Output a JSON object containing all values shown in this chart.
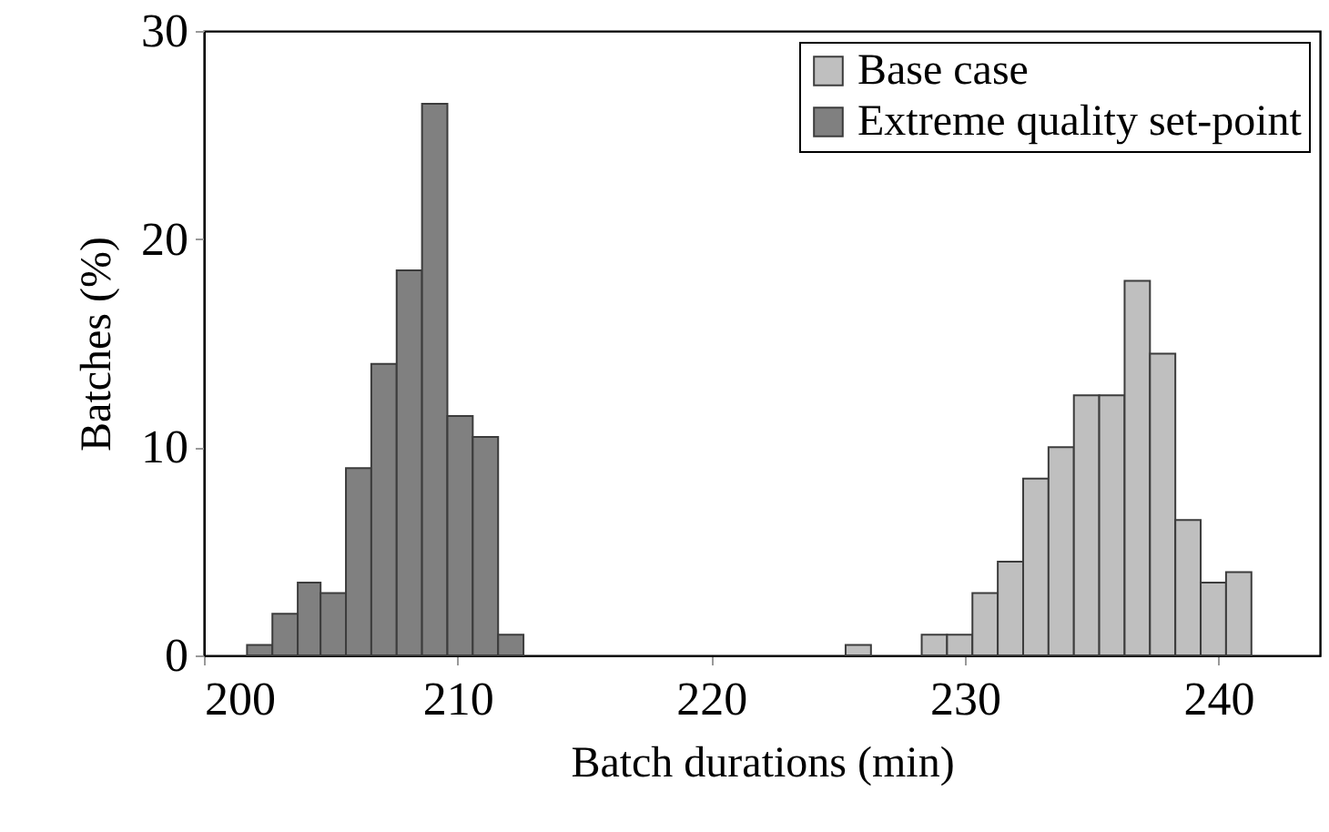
{
  "chart_data": {
    "type": "histogram",
    "xlabel": "Batch durations (min)",
    "ylabel": "Batches (%)",
    "xlim": [
      200,
      244
    ],
    "xticks": [
      200,
      210,
      220,
      230,
      240
    ],
    "ylim": [
      0,
      30
    ],
    "yticks": [
      0,
      10,
      20,
      30
    ],
    "grid": false,
    "legend": "top right",
    "bins": [
      201.7,
      202.7,
      203.7,
      204.6,
      205.6,
      206.6,
      207.6,
      208.6,
      209.6,
      210.6,
      211.6,
      212.6,
      225.3,
      226.3,
      228.3,
      229.3,
      230.3,
      231.3,
      232.3,
      233.3,
      234.3,
      235.3,
      236.3,
      237.3,
      238.3,
      239.3,
      240.3,
      241.3
    ],
    "series": [
      {
        "name": "Base case",
        "color": "#bfbfbf",
        "values": [
          null,
          null,
          null,
          null,
          null,
          null,
          null,
          null,
          null,
          null,
          null,
          null,
          0.5,
          null,
          1,
          1,
          3,
          4.5,
          8.5,
          10,
          12.5,
          12.5,
          18,
          14.5,
          6.5,
          3.5,
          4
        ]
      },
      {
        "name": "Extreme quality set-point",
        "color": "#808080",
        "values": [
          0.5,
          2,
          3.5,
          3,
          9,
          14,
          18.5,
          26.5,
          11.5,
          10.5,
          1,
          null,
          null,
          null,
          null,
          null,
          null,
          null,
          null,
          null,
          null,
          null,
          null,
          null,
          null,
          null,
          null
        ]
      }
    ]
  }
}
